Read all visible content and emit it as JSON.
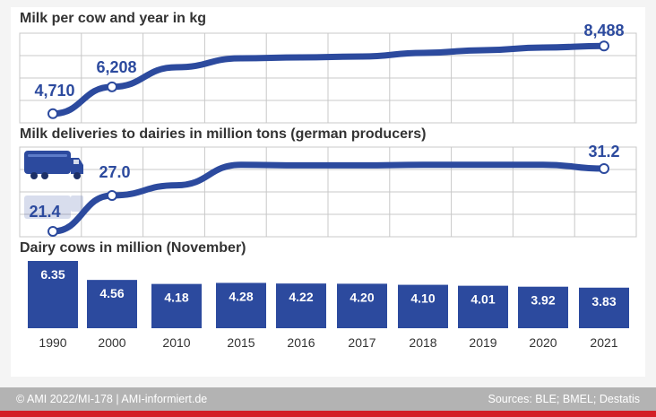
{
  "chart_data": [
    {
      "type": "line",
      "title": "Milk per cow and year in kg",
      "x": [
        "1990",
        "2000",
        "2010",
        "2015",
        "2016",
        "2017",
        "2018",
        "2019",
        "2020",
        "2021"
      ],
      "values": [
        4710,
        6208,
        7300,
        7800,
        7850,
        7900,
        8100,
        8250,
        8400,
        8488
      ],
      "labeled_points": [
        {
          "x": "1990",
          "label": "4,710"
        },
        {
          "x": "2000",
          "label": "6,208"
        },
        {
          "x": "2021",
          "label": "8,488"
        }
      ],
      "ylim": [
        4000,
        9000
      ],
      "grid": true
    },
    {
      "type": "line",
      "title": "Milk deliveries to dairies in million tons (german producers)",
      "x": [
        "1990",
        "2000",
        "2010",
        "2015",
        "2016",
        "2017",
        "2018",
        "2019",
        "2020",
        "2021"
      ],
      "values": [
        21.4,
        27.0,
        28.6,
        31.8,
        31.7,
        31.7,
        31.8,
        31.8,
        31.8,
        31.2
      ],
      "labeled_points": [
        {
          "x": "1990",
          "label": "21.4"
        },
        {
          "x": "2000",
          "label": "27.0"
        },
        {
          "x": "2021",
          "label": "31.2"
        }
      ],
      "ylim": [
        20,
        34
      ],
      "grid": true,
      "icon": "milk-truck-icon"
    },
    {
      "type": "bar",
      "title": "Dairy cows in million (November)",
      "categories": [
        "1990",
        "2000",
        "2010",
        "2015",
        "2016",
        "2017",
        "2018",
        "2019",
        "2020",
        "2021"
      ],
      "values": [
        6.35,
        4.56,
        4.18,
        4.28,
        4.22,
        4.2,
        4.1,
        4.01,
        3.92,
        3.83
      ],
      "labels": [
        "6.35",
        "4.56",
        "4.18",
        "4.28",
        "4.22",
        "4.20",
        "4.10",
        "4.01",
        "3.92",
        "3.83"
      ]
    }
  ],
  "colors": {
    "series": "#2c4a9e",
    "bar": "#2c4a9e",
    "grid": "#c8c8c8",
    "footer_bg": "#b3b3b3",
    "footer_strip": "#d31f26"
  },
  "footer": {
    "left": "© AMI 2022/MI-178 | AMI-informiert.de",
    "right": "Sources: BLE; BMEL; Destatis"
  }
}
